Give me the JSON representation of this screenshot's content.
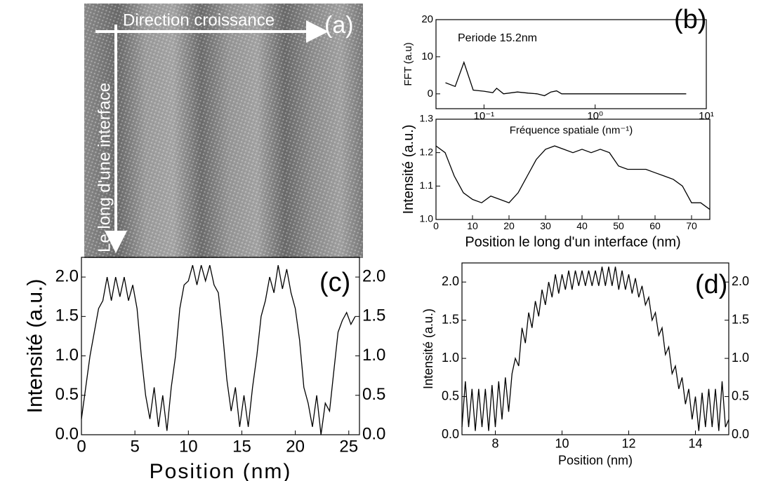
{
  "image_panel": {
    "label": "(a)",
    "horizontal_arrow": "Direction croissance",
    "vertical_arrow": "Le long d'une interface"
  },
  "chart_data": [
    {
      "type": "line",
      "panel_label": "(b)",
      "xlabel": "Fréquence spatiale (nm⁻¹)",
      "ylabel": "FFT (a.u)",
      "annotation": "Periode 15.2nm",
      "xscale": "log",
      "color": "#000000",
      "x": [
        0.045,
        0.055,
        0.066,
        0.08,
        0.1,
        0.12,
        0.13,
        0.15,
        0.2,
        0.25,
        0.3,
        0.35,
        0.4,
        0.45,
        0.5,
        1,
        2,
        4,
        6.6
      ],
      "values": [
        3,
        2,
        8.5,
        1,
        0.7,
        0.3,
        1.5,
        0,
        0.5,
        0.2,
        0,
        -0.5,
        0.5,
        0.8,
        0,
        0,
        0,
        0,
        0
      ],
      "xlim": [
        0.037,
        10
      ],
      "ylim": [
        -4,
        20
      ],
      "xticks": [
        {
          "value": 0.1,
          "label": "10⁻¹"
        },
        {
          "value": 1,
          "label": "10⁰"
        },
        {
          "value": 10,
          "label": "10¹"
        }
      ],
      "yticks": [
        0,
        10,
        20
      ]
    },
    {
      "type": "line",
      "xlabel": "Position le long d'un interface (nm)",
      "ylabel": "Intensité (a.u.)",
      "color": "#000000",
      "x": [
        0,
        2.5,
        5,
        7.5,
        10,
        12.5,
        15,
        17.5,
        20,
        22.5,
        25,
        27.5,
        30,
        32.5,
        35,
        37.5,
        40,
        42.5,
        45,
        47.5,
        50,
        52.5,
        55,
        57.5,
        60,
        62.5,
        65,
        67.5,
        70,
        72.5,
        75
      ],
      "values": [
        1.22,
        1.2,
        1.13,
        1.08,
        1.06,
        1.05,
        1.07,
        1.06,
        1.05,
        1.08,
        1.13,
        1.18,
        1.21,
        1.22,
        1.21,
        1.2,
        1.21,
        1.2,
        1.21,
        1.2,
        1.16,
        1.15,
        1.15,
        1.15,
        1.14,
        1.13,
        1.12,
        1.1,
        1.05,
        1.05,
        1.03
      ],
      "xlim": [
        0,
        75
      ],
      "ylim": [
        1.0,
        1.3
      ],
      "xticks": [
        0,
        10,
        20,
        30,
        40,
        50,
        60,
        70
      ],
      "yticks": [
        {
          "value": 1.0,
          "label": "1.0"
        },
        1.1,
        1.2,
        1.3
      ]
    },
    {
      "type": "line",
      "panel_label": "(c)",
      "xlabel": "Position (nm)",
      "ylabel": "Intensité (a.u.)",
      "color": "#000000",
      "right_axis": true,
      "x": [
        0,
        0.4,
        0.8,
        1.2,
        1.6,
        2.0,
        2.4,
        2.8,
        3.2,
        3.6,
        4.0,
        4.4,
        4.8,
        5.2,
        5.6,
        6.0,
        6.4,
        6.8,
        7.2,
        7.6,
        8.0,
        8.4,
        8.8,
        9.2,
        9.6,
        10.0,
        10.4,
        10.8,
        11.2,
        11.6,
        12.0,
        12.4,
        12.8,
        13.2,
        13.6,
        14.0,
        14.4,
        14.8,
        15.2,
        15.6,
        16.0,
        16.4,
        16.8,
        17.2,
        17.6,
        18.0,
        18.4,
        18.8,
        19.2,
        19.6,
        20.0,
        20.4,
        20.8,
        21.2,
        21.6,
        22.0,
        22.4,
        22.8,
        23.2,
        23.6,
        24.0,
        24.4,
        24.8,
        25.2,
        25.6
      ],
      "values": [
        0.2,
        0.6,
        1.0,
        1.3,
        1.6,
        1.7,
        2.0,
        1.7,
        2.0,
        1.75,
        2.0,
        1.7,
        1.9,
        1.6,
        1.0,
        0.5,
        0.2,
        0.6,
        0.1,
        0.5,
        0.05,
        0.6,
        1.0,
        1.6,
        1.9,
        1.95,
        2.15,
        1.9,
        2.15,
        1.95,
        2.15,
        1.9,
        1.8,
        1.3,
        0.7,
        0.3,
        0.6,
        0.1,
        0.5,
        0.1,
        0.6,
        1.0,
        1.5,
        1.7,
        2.0,
        1.8,
        2.15,
        1.85,
        2.1,
        1.8,
        1.6,
        1.2,
        0.6,
        0.4,
        0.1,
        0.5,
        0.0,
        0.4,
        0.3,
        0.8,
        1.3,
        1.45,
        1.55,
        1.4,
        1.5
      ],
      "xlim": [
        0,
        26
      ],
      "ylim": [
        0,
        2.25
      ],
      "xticks": [
        0,
        5,
        10,
        15,
        20,
        25
      ],
      "yticks": [
        {
          "value": 0,
          "label": "0.0"
        },
        0.5,
        {
          "value": 1,
          "label": "1.0"
        },
        1.5,
        {
          "value": 2,
          "label": "2.0"
        }
      ]
    },
    {
      "type": "line",
      "panel_label": "(d)",
      "xlabel": "Position (nm)",
      "ylabel": "Intensité (a.u.)",
      "color": "#000000",
      "right_axis": true,
      "x": [
        7.0,
        7.1,
        7.2,
        7.3,
        7.4,
        7.5,
        7.6,
        7.7,
        7.8,
        7.9,
        8.0,
        8.1,
        8.2,
        8.3,
        8.4,
        8.5,
        8.6,
        8.7,
        8.8,
        8.9,
        9.0,
        9.1,
        9.2,
        9.3,
        9.4,
        9.5,
        9.6,
        9.7,
        9.8,
        9.9,
        10.0,
        10.1,
        10.2,
        10.3,
        10.4,
        10.5,
        10.6,
        10.7,
        10.8,
        10.9,
        11.0,
        11.1,
        11.2,
        11.3,
        11.4,
        11.5,
        11.6,
        11.7,
        11.8,
        11.9,
        12.0,
        12.1,
        12.2,
        12.3,
        12.4,
        12.5,
        12.6,
        12.7,
        12.8,
        12.9,
        13.0,
        13.1,
        13.2,
        13.3,
        13.4,
        13.5,
        13.6,
        13.7,
        13.8,
        13.9,
        14.0,
        14.1,
        14.2,
        14.3,
        14.4,
        14.5,
        14.6,
        14.7,
        14.8,
        14.9,
        15.0
      ],
      "values": [
        0.1,
        0.7,
        0.1,
        0.6,
        0.05,
        0.6,
        0.1,
        0.6,
        0.05,
        0.65,
        0.1,
        0.7,
        0.2,
        0.75,
        0.3,
        0.8,
        1.0,
        0.9,
        1.4,
        1.2,
        1.6,
        1.4,
        1.75,
        1.55,
        1.9,
        1.7,
        2.0,
        1.8,
        2.1,
        1.85,
        2.1,
        1.9,
        2.15,
        1.9,
        2.15,
        1.95,
        2.15,
        1.95,
        2.15,
        1.95,
        2.15,
        1.95,
        2.2,
        1.95,
        2.2,
        1.95,
        2.2,
        1.9,
        2.15,
        1.9,
        2.1,
        1.85,
        2.05,
        1.8,
        1.95,
        1.7,
        1.8,
        1.5,
        1.6,
        1.3,
        1.4,
        1.05,
        1.15,
        0.8,
        0.9,
        0.6,
        0.75,
        0.4,
        0.6,
        0.2,
        0.5,
        0.05,
        0.55,
        0.1,
        0.6,
        0.1,
        0.6,
        0.05,
        0.7,
        0.1,
        0.2
      ],
      "xlim": [
        7,
        15
      ],
      "ylim": [
        0,
        2.25
      ],
      "xticks": [
        8,
        10,
        12,
        14
      ],
      "yticks": [
        {
          "value": 0,
          "label": "0.0"
        },
        0.5,
        {
          "value": 1,
          "label": "1.0"
        },
        1.5,
        {
          "value": 2,
          "label": "2.0"
        }
      ]
    }
  ]
}
